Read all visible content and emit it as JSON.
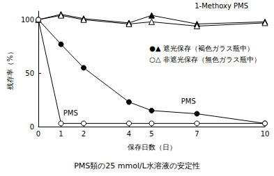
{
  "chart_data": {
    "type": "line",
    "title": "PMS類の25 mmol/L水溶液の安定性",
    "x_label": "保存日数（日）",
    "y_label": "残存率（%）",
    "xlim": [
      0,
      10
    ],
    "xticks": [
      0,
      1,
      2,
      4,
      5,
      7,
      10
    ],
    "ylim": [
      0,
      108
    ],
    "yticks": [
      0,
      50,
      100
    ],
    "grid": false,
    "series": [
      {
        "color": "#000000",
        "marker": "open_triangle",
        "line_style": "solid",
        "x": [
          0,
          1,
          2,
          4,
          5,
          7,
          10
        ],
        "values": [
          100,
          104,
          100,
          96,
          98,
          94,
          97
        ]
      },
      {
        "color": "#000000",
        "marker": "triangle",
        "line_style": "solid",
        "x": [
          0,
          1,
          2,
          4,
          5,
          7,
          10
        ],
        "values": [
          100,
          105,
          101,
          97,
          104,
          96,
          98
        ]
      },
      {
        "color": "#000000",
        "marker": "circle",
        "line_style": "solid",
        "x": [
          0,
          1,
          2,
          4,
          5,
          7,
          10
        ],
        "values": [
          100,
          77,
          55,
          23,
          15,
          12,
          3
        ]
      },
      {
        "color": "#000000",
        "marker": "open_circle",
        "line_style": "solid",
        "x": [
          0,
          1,
          2,
          4,
          5,
          7,
          10
        ],
        "values": [
          100,
          3,
          3,
          3,
          3,
          3,
          3
        ]
      }
    ],
    "annotations": [
      {
        "text": "1-Methoxy PMS",
        "x": 6.9,
        "y": 113
      },
      {
        "text": "●▲ 遮光保存（褐色ガラス瓶中）",
        "x": 4.9,
        "y": 73
      },
      {
        "text": "○△ 非遮光保存（無色ガラス瓶中）",
        "x": 4.9,
        "y": 63
      },
      {
        "text": "PMS",
        "x": 1.1,
        "y": 13
      },
      {
        "text": "PMS",
        "x": 6.3,
        "y": 24
      }
    ]
  }
}
